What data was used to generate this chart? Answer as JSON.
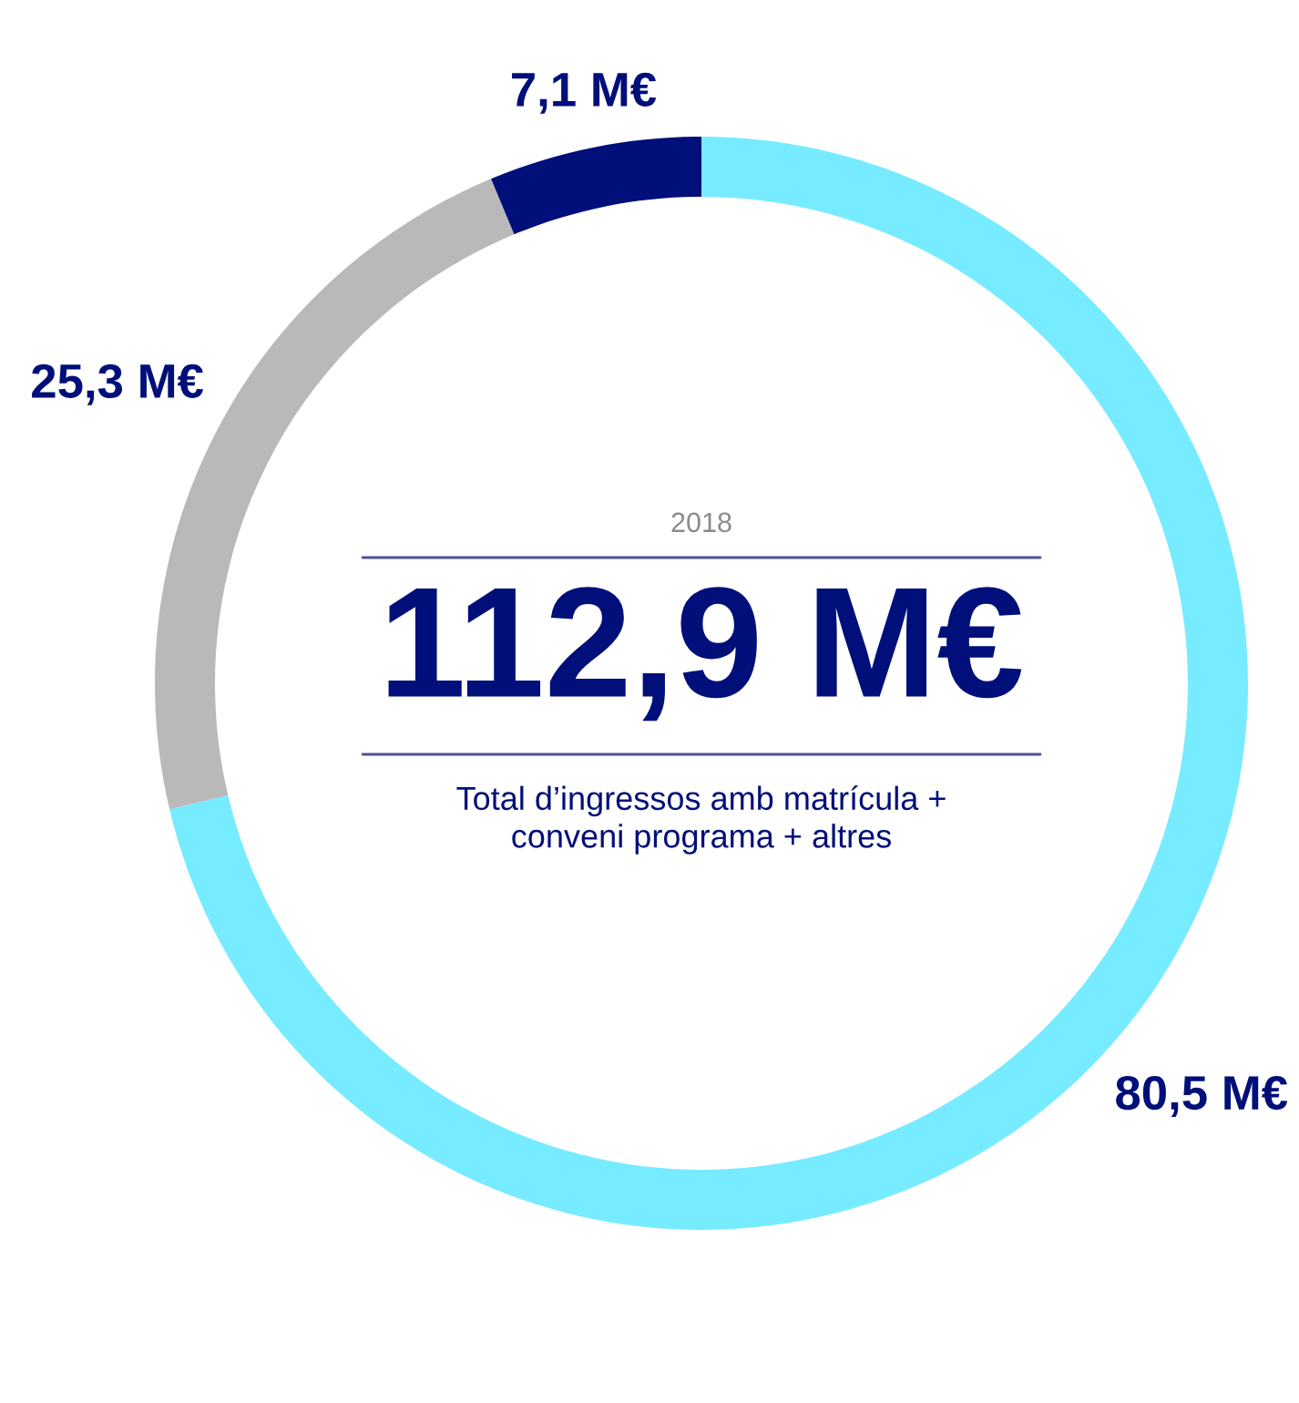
{
  "chart_data": {
    "type": "donut",
    "categories": [
      null,
      null,
      null
    ],
    "values": [
      80.5,
      25.3,
      7.1
    ],
    "colors": [
      "#77ebff",
      "#b9b9b9",
      "#000f7a"
    ],
    "value_labels": [
      "80,5 M€",
      "25,3 M€",
      "7,1 M€"
    ],
    "annotations": [
      "2018",
      "112,9 M€",
      "Total d’ingressos amb matrícula +\nconveni programa + altres"
    ]
  }
}
